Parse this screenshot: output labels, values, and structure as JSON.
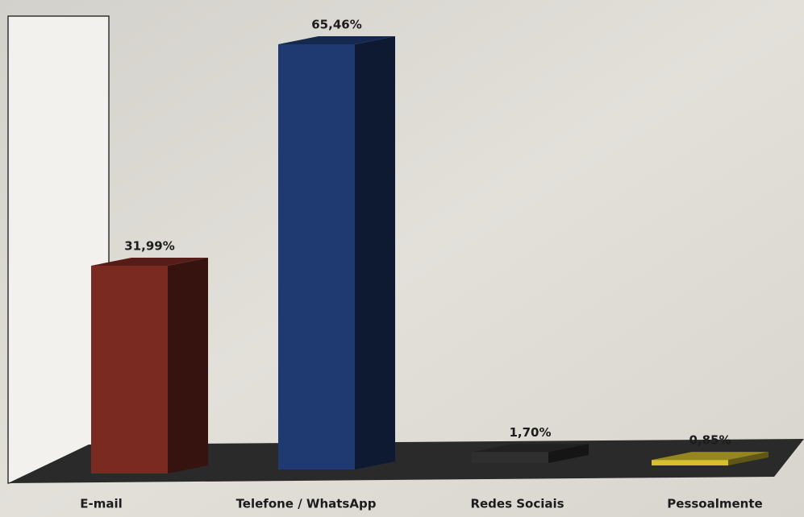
{
  "chart_data": {
    "type": "bar3d",
    "categories": [
      "E-mail",
      "Telefone / WhatsApp",
      "Redes Sociais",
      "Pessoalmente"
    ],
    "values": [
      31.99,
      65.46,
      1.7,
      0.85
    ],
    "value_labels": [
      "31,99%",
      "65,46%",
      "1,70%",
      "0,85%"
    ],
    "colors": [
      "#7b2a22",
      "#1e3a70",
      "#2f2f2f",
      "#d6bf2e"
    ]
  }
}
